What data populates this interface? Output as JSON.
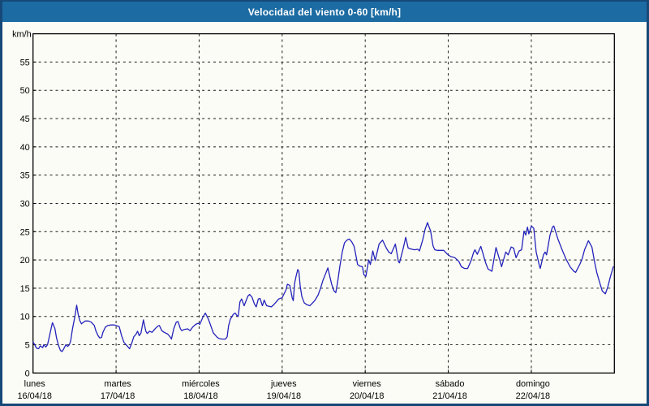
{
  "window": {
    "title": "Velocidad del viento 0-60 [km/h]"
  },
  "colors": {
    "title_bar_bg": "#1c6ca3",
    "outer_border": "#164878",
    "background": "#fcfcf6",
    "grid": "#1a1a1a",
    "line": "#2222bc",
    "text": "#000000"
  },
  "chart_data": {
    "type": "line",
    "title": "Velocidad del viento 0-60 [km/h]",
    "y_axis_label": "km/h",
    "y_range": [
      0,
      60
    ],
    "y_ticks": [
      0,
      5,
      10,
      15,
      20,
      25,
      30,
      35,
      40,
      45,
      50,
      55
    ],
    "x_range_hours": [
      0,
      168
    ],
    "grid": "dashed",
    "legend": "none",
    "days": [
      {
        "name": "lunes",
        "date": "16/04/18"
      },
      {
        "name": "martes",
        "date": "17/04/18"
      },
      {
        "name": "miércoles",
        "date": "18/04/18"
      },
      {
        "name": "jueves",
        "date": "19/04/18"
      },
      {
        "name": "viernes",
        "date": "20/04/18"
      },
      {
        "name": "sábado",
        "date": "21/04/18"
      },
      {
        "name": "domingo",
        "date": "22/04/18"
      }
    ],
    "series": [
      {
        "name": "wind-speed-km-h",
        "color": "#2222bc",
        "points": [
          [
            0,
            5.5
          ],
          [
            0.5,
            5.0
          ],
          [
            1,
            4.4
          ],
          [
            1.6,
            4.3
          ],
          [
            2.1,
            4.8
          ],
          [
            2.8,
            4.5
          ],
          [
            3.1,
            5.0
          ],
          [
            3.7,
            4.6
          ],
          [
            4.2,
            5.0
          ],
          [
            4.7,
            6.4
          ],
          [
            5.3,
            8.1
          ],
          [
            5.6,
            8.9
          ],
          [
            6.3,
            7.9
          ],
          [
            6.8,
            6.2
          ],
          [
            7.4,
            4.8
          ],
          [
            7.9,
            4.0
          ],
          [
            8.4,
            3.8
          ],
          [
            8.9,
            4.3
          ],
          [
            9.5,
            5.0
          ],
          [
            10,
            4.7
          ],
          [
            10.5,
            5.0
          ],
          [
            10.9,
            5.7
          ],
          [
            11.4,
            7.8
          ],
          [
            12.1,
            10.0
          ],
          [
            12.6,
            12.0
          ],
          [
            13,
            10.5
          ],
          [
            13.5,
            9.3
          ],
          [
            14,
            8.7
          ],
          [
            14.4,
            8.9
          ],
          [
            15.1,
            9.2
          ],
          [
            16,
            9.2
          ],
          [
            16.8,
            9.0
          ],
          [
            17.7,
            8.4
          ],
          [
            18.2,
            7.4
          ],
          [
            18.8,
            6.6
          ],
          [
            19.3,
            6.2
          ],
          [
            19.8,
            6.3
          ],
          [
            20.2,
            7.2
          ],
          [
            20.9,
            8.1
          ],
          [
            21.6,
            8.4
          ],
          [
            22.6,
            8.5
          ],
          [
            23.5,
            8.5
          ],
          [
            24,
            8.4
          ],
          [
            24.9,
            8.2
          ],
          [
            25.6,
            6.6
          ],
          [
            26.3,
            5.4
          ],
          [
            27.2,
            4.8
          ],
          [
            27.9,
            4.3
          ],
          [
            28.6,
            5.4
          ],
          [
            29.1,
            6.4
          ],
          [
            29.8,
            6.9
          ],
          [
            30.2,
            7.4
          ],
          [
            30.7,
            6.6
          ],
          [
            31.2,
            7.1
          ],
          [
            31.9,
            9.4
          ],
          [
            32.6,
            7.4
          ],
          [
            33,
            7.0
          ],
          [
            33.7,
            7.4
          ],
          [
            34.4,
            7.2
          ],
          [
            35.4,
            7.9
          ],
          [
            36.1,
            8.3
          ],
          [
            36.5,
            8.4
          ],
          [
            37.2,
            7.5
          ],
          [
            37.9,
            7.2
          ],
          [
            38.9,
            6.9
          ],
          [
            39.6,
            6.4
          ],
          [
            40,
            6.0
          ],
          [
            40.7,
            7.9
          ],
          [
            41.4,
            9.0
          ],
          [
            41.9,
            9.1
          ],
          [
            42.6,
            7.8
          ],
          [
            43,
            7.5
          ],
          [
            43.7,
            7.7
          ],
          [
            44.7,
            7.8
          ],
          [
            45.4,
            7.5
          ],
          [
            46.1,
            8.1
          ],
          [
            47,
            8.6
          ],
          [
            47.7,
            8.8
          ],
          [
            48.2,
            8.6
          ],
          [
            49.1,
            9.9
          ],
          [
            49.8,
            10.6
          ],
          [
            50.7,
            9.5
          ],
          [
            51.4,
            8.3
          ],
          [
            52.1,
            7.1
          ],
          [
            53.1,
            6.4
          ],
          [
            53.7,
            6.1
          ],
          [
            54.7,
            6.0
          ],
          [
            55.6,
            6.0
          ],
          [
            56.1,
            6.4
          ],
          [
            56.5,
            8.3
          ],
          [
            57,
            9.5
          ],
          [
            57.5,
            10.0
          ],
          [
            57.9,
            10.4
          ],
          [
            58.4,
            10.6
          ],
          [
            58.9,
            10.2
          ],
          [
            59.3,
            10.0
          ],
          [
            59.8,
            12.6
          ],
          [
            60.3,
            13.1
          ],
          [
            61,
            11.9
          ],
          [
            61.7,
            13.0
          ],
          [
            62.1,
            13.6
          ],
          [
            62.6,
            13.9
          ],
          [
            63.3,
            13.4
          ],
          [
            64,
            12.2
          ],
          [
            64.5,
            11.7
          ],
          [
            65.1,
            13.1
          ],
          [
            65.6,
            13.2
          ],
          [
            66.3,
            11.9
          ],
          [
            66.8,
            12.9
          ],
          [
            67.5,
            11.9
          ],
          [
            68.2,
            11.8
          ],
          [
            68.9,
            11.7
          ],
          [
            69.6,
            12.1
          ],
          [
            70.3,
            12.6
          ],
          [
            71,
            13.1
          ],
          [
            71.4,
            13.2
          ],
          [
            72,
            13.3
          ],
          [
            72.4,
            13.8
          ],
          [
            73.1,
            14.7
          ],
          [
            73.5,
            15.7
          ],
          [
            74.2,
            15.5
          ],
          [
            74.9,
            13.3
          ],
          [
            75.2,
            12.8
          ],
          [
            75.6,
            15.9
          ],
          [
            76.1,
            17.3
          ],
          [
            76.5,
            18.3
          ],
          [
            76.8,
            18.0
          ],
          [
            77.2,
            15.4
          ],
          [
            77.7,
            13.5
          ],
          [
            78.4,
            12.4
          ],
          [
            79.1,
            12.1
          ],
          [
            80,
            11.9
          ],
          [
            81.4,
            12.8
          ],
          [
            82.4,
            13.8
          ],
          [
            83.1,
            15.0
          ],
          [
            83.8,
            16.4
          ],
          [
            84.7,
            17.8
          ],
          [
            85.2,
            18.6
          ],
          [
            85.6,
            17.5
          ],
          [
            86.3,
            15.7
          ],
          [
            87,
            14.5
          ],
          [
            87.5,
            14.2
          ],
          [
            88,
            16.0
          ],
          [
            88.7,
            19.0
          ],
          [
            89.4,
            21.5
          ],
          [
            90,
            23.0
          ],
          [
            90.7,
            23.5
          ],
          [
            91.4,
            23.7
          ],
          [
            92.1,
            23.2
          ],
          [
            92.8,
            22.4
          ],
          [
            93.3,
            20.8
          ],
          [
            93.8,
            19.2
          ],
          [
            94.5,
            18.9
          ],
          [
            95.2,
            18.8
          ],
          [
            95.6,
            17.4
          ],
          [
            96.2,
            17.1
          ],
          [
            97,
            20.0
          ],
          [
            97.5,
            19.2
          ],
          [
            98.2,
            21.6
          ],
          [
            98.9,
            19.9
          ],
          [
            100,
            22.8
          ],
          [
            101,
            23.5
          ],
          [
            102.1,
            22.1
          ],
          [
            102.8,
            21.4
          ],
          [
            103.5,
            21.1
          ],
          [
            104.7,
            22.8
          ],
          [
            105.6,
            19.7
          ],
          [
            105.9,
            19.5
          ],
          [
            106.8,
            21.6
          ],
          [
            107.7,
            24.0
          ],
          [
            108.4,
            22.1
          ],
          [
            109.4,
            21.9
          ],
          [
            110.3,
            21.8
          ],
          [
            111.2,
            21.9
          ],
          [
            111.7,
            21.6
          ],
          [
            112.6,
            23.5
          ],
          [
            113.3,
            25.4
          ],
          [
            114,
            26.6
          ],
          [
            114.9,
            25.1
          ],
          [
            115.6,
            22.5
          ],
          [
            116.1,
            21.8
          ],
          [
            116.8,
            21.7
          ],
          [
            117.7,
            21.7
          ],
          [
            118.7,
            21.7
          ],
          [
            119.6,
            21.1
          ],
          [
            120,
            20.9
          ],
          [
            120.7,
            20.6
          ],
          [
            121.9,
            20.4
          ],
          [
            123.1,
            19.7
          ],
          [
            123.8,
            18.8
          ],
          [
            124.7,
            18.5
          ],
          [
            125.6,
            18.5
          ],
          [
            126.6,
            19.9
          ],
          [
            127.3,
            21.3
          ],
          [
            127.7,
            21.8
          ],
          [
            128.4,
            21.0
          ],
          [
            129.4,
            22.4
          ],
          [
            130.1,
            21.0
          ],
          [
            130.8,
            19.5
          ],
          [
            131.5,
            18.4
          ],
          [
            132.6,
            18.0
          ],
          [
            133.8,
            22.2
          ],
          [
            135,
            19.7
          ],
          [
            135.4,
            18.8
          ],
          [
            136.6,
            21.4
          ],
          [
            137.3,
            20.9
          ],
          [
            138.2,
            22.3
          ],
          [
            138.9,
            22.1
          ],
          [
            139.6,
            20.4
          ],
          [
            140.5,
            21.6
          ],
          [
            141.2,
            21.8
          ],
          [
            141.9,
            25.1
          ],
          [
            142.4,
            24.4
          ],
          [
            142.9,
            25.8
          ],
          [
            143.3,
            24.6
          ],
          [
            144,
            26.0
          ],
          [
            144.7,
            25.6
          ],
          [
            145.4,
            21.4
          ],
          [
            146.4,
            18.8
          ],
          [
            146.6,
            18.5
          ],
          [
            147.5,
            20.9
          ],
          [
            148,
            21.4
          ],
          [
            148.4,
            20.9
          ],
          [
            149.4,
            24.4
          ],
          [
            150.1,
            25.8
          ],
          [
            150.5,
            26.0
          ],
          [
            151.7,
            23.7
          ],
          [
            152.9,
            21.8
          ],
          [
            154,
            20.2
          ],
          [
            155.2,
            18.8
          ],
          [
            156.3,
            18.0
          ],
          [
            156.8,
            17.8
          ],
          [
            158,
            19.2
          ],
          [
            158.7,
            20.2
          ],
          [
            159.4,
            21.8
          ],
          [
            160.5,
            23.4
          ],
          [
            161.5,
            22.3
          ],
          [
            162.2,
            19.9
          ],
          [
            162.9,
            17.8
          ],
          [
            163.8,
            15.9
          ],
          [
            164.5,
            14.5
          ],
          [
            165.4,
            14.0
          ],
          [
            166.1,
            15.2
          ],
          [
            166.8,
            16.9
          ],
          [
            167.7,
            18.8
          ]
        ]
      }
    ]
  }
}
